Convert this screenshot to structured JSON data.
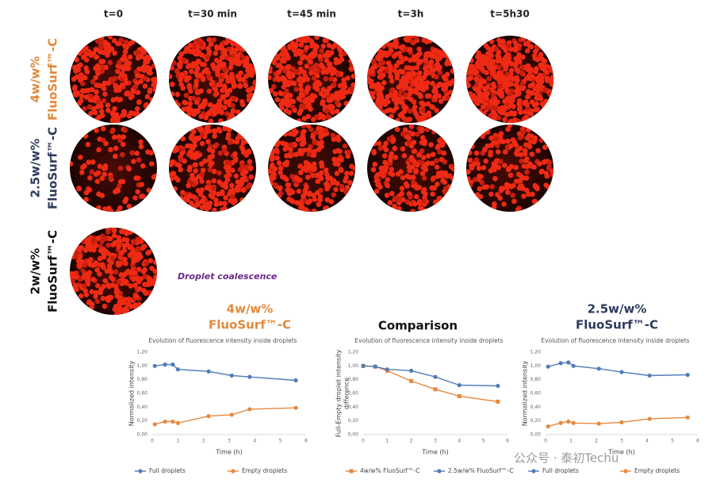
{
  "figure": {
    "time_labels": [
      "t=0",
      "t=30 min",
      "t=45 min",
      "t=3h",
      "t=5h30"
    ],
    "rows": [
      [
        "4w/w%",
        "FluoSurf™-C"
      ],
      [
        "2.5w/w%",
        "FluoSurf™-C"
      ],
      [
        "2w/w%",
        "FluoSurf™-C"
      ]
    ],
    "annotation": "Droplet coalescence",
    "watermark": "公众号 · 泰初Techu"
  },
  "chart_data": [
    {
      "type": "line",
      "heading": [
        "4w/w%",
        "FluoSurf™-C"
      ],
      "heading_color": "#e08a3c",
      "title": "Evolution of fluorescence intensity inside droplets",
      "xlabel": "Time (h)",
      "ylabel": [
        "Normalized intensity"
      ],
      "xlim": [
        0,
        6
      ],
      "xticks": [
        0,
        1,
        2,
        3,
        4,
        5,
        6
      ],
      "ylim": [
        0,
        1.2
      ],
      "yticks": [
        {
          "value": 0,
          "label": "0,00"
        },
        {
          "value": 0.2,
          "label": "0,20"
        },
        {
          "value": 0.4,
          "label": "0,40"
        },
        {
          "value": 0.6,
          "label": "0,60"
        },
        {
          "value": 0.8,
          "label": "0,80"
        },
        {
          "value": 1.0,
          "label": "1,00"
        },
        {
          "value": 1.2,
          "label": "1,20"
        }
      ],
      "series": [
        {
          "name": "Full droplets",
          "color": "#4f7cb8",
          "marker": "circle",
          "x": [
            0.1,
            0.5,
            0.8,
            1.0,
            2.2,
            3.1,
            3.8,
            5.6
          ],
          "values": [
            1.0,
            1.02,
            1.02,
            0.95,
            0.92,
            0.86,
            0.84,
            0.79
          ]
        },
        {
          "name": "Empty droplets",
          "color": "#e8883e",
          "marker": "circle",
          "x": [
            0.1,
            0.5,
            0.8,
            1.0,
            2.2,
            3.1,
            3.8,
            5.6
          ],
          "values": [
            0.15,
            0.19,
            0.19,
            0.17,
            0.27,
            0.29,
            0.37,
            0.39
          ]
        }
      ]
    },
    {
      "type": "line",
      "heading": [
        "Comparison"
      ],
      "heading_color": "#111111",
      "title": "Evolution of fluorescence intensity inside droplets",
      "xlabel": "Time (h)",
      "ylabel": [
        "Full-Empty droplet intensity",
        "difference"
      ],
      "xlim": [
        0,
        6
      ],
      "xticks": [
        0,
        1,
        2,
        3,
        4,
        5,
        6
      ],
      "ylim": [
        0,
        1.2
      ],
      "yticks": [
        {
          "value": 0,
          "label": "0,00"
        },
        {
          "value": 0.2,
          "label": "0,20"
        },
        {
          "value": 0.4,
          "label": "0,40"
        },
        {
          "value": 0.6,
          "label": "0,60"
        },
        {
          "value": 0.8,
          "label": "0,80"
        },
        {
          "value": 1.0,
          "label": "1,00"
        },
        {
          "value": 1.2,
          "label": "1,20"
        }
      ],
      "series": [
        {
          "name": "4w/w% FluoSurf™-C",
          "color": "#e8883e",
          "marker": "square",
          "x": [
            0,
            0.5,
            1,
            2,
            3,
            4,
            5.6
          ],
          "values": [
            1.0,
            0.99,
            0.93,
            0.78,
            0.66,
            0.56,
            0.48
          ]
        },
        {
          "name": "2.5w/w% FluoSurf™-C",
          "color": "#4f7cb8",
          "marker": "circle",
          "x": [
            0,
            0.5,
            1,
            2,
            3,
            4,
            5.6
          ],
          "values": [
            1.0,
            0.99,
            0.95,
            0.93,
            0.84,
            0.72,
            0.71
          ]
        }
      ]
    },
    {
      "type": "line",
      "heading": [
        "2.5w/w%",
        "FluoSurf™-C"
      ],
      "heading_color": "#2e3a5c",
      "title": "Evolution of fluorescence intensity inside droplets",
      "xlabel": "Time (h)",
      "ylabel": [
        "Normalized intensity"
      ],
      "xlim": [
        0,
        6
      ],
      "xticks": [
        0,
        1,
        2,
        3,
        4,
        5,
        6
      ],
      "ylim": [
        0,
        1.2
      ],
      "yticks": [
        {
          "value": 0,
          "label": "0,00"
        },
        {
          "value": 0.2,
          "label": "0,20"
        },
        {
          "value": 0.4,
          "label": "0,40"
        },
        {
          "value": 0.6,
          "label": "0,60"
        },
        {
          "value": 0.8,
          "label": "0,80"
        },
        {
          "value": 1.0,
          "label": "1,00"
        },
        {
          "value": 1.2,
          "label": "1,20"
        }
      ],
      "series": [
        {
          "name": "Full droplets",
          "color": "#4f7cb8",
          "marker": "circle",
          "x": [
            0.1,
            0.6,
            0.9,
            1.1,
            2.1,
            3.0,
            4.1,
            5.6
          ],
          "values": [
            0.99,
            1.04,
            1.05,
            1.0,
            0.96,
            0.91,
            0.86,
            0.87
          ]
        },
        {
          "name": "Empty droplets",
          "color": "#e8883e",
          "marker": "circle",
          "x": [
            0.1,
            0.6,
            0.9,
            1.1,
            2.1,
            3.0,
            4.1,
            5.6
          ],
          "values": [
            0.12,
            0.17,
            0.19,
            0.17,
            0.16,
            0.18,
            0.23,
            0.25
          ]
        }
      ]
    }
  ]
}
